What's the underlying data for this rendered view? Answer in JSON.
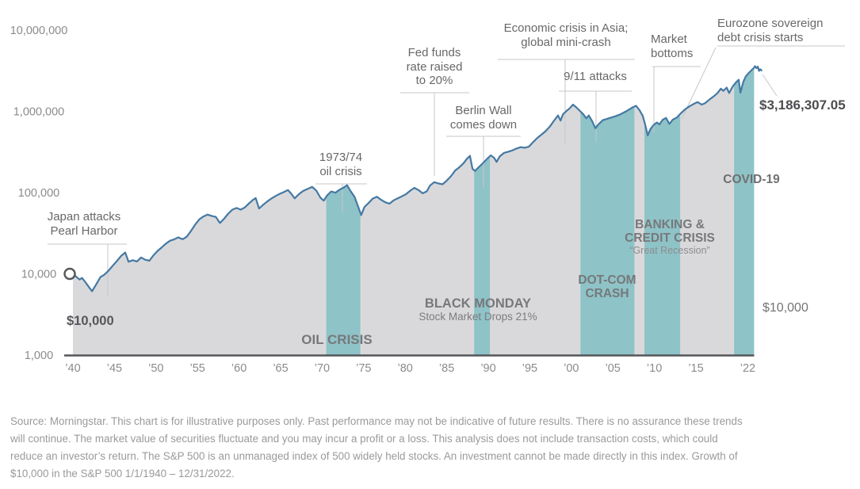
{
  "chart": {
    "y_axis_labels": [
      {
        "value": 10000000,
        "label": "10,000,000"
      },
      {
        "value": 1000000,
        "label": "1,000,000"
      },
      {
        "value": 100000,
        "label": "100,000"
      },
      {
        "value": 10000,
        "label": "10,000"
      },
      {
        "value": 1000,
        "label": "1,000"
      }
    ],
    "x_ticks": [
      {
        "year": 1940,
        "label": "’40"
      },
      {
        "year": 1945,
        "label": "’45"
      },
      {
        "year": 1950,
        "label": "’50"
      },
      {
        "year": 1955,
        "label": "’55"
      },
      {
        "year": 1960,
        "label": "’60"
      },
      {
        "year": 1965,
        "label": "’65"
      },
      {
        "year": 1970,
        "label": "’70"
      },
      {
        "year": 1975,
        "label": "’75"
      },
      {
        "year": 1980,
        "label": "’80"
      },
      {
        "year": 1985,
        "label": "’85"
      },
      {
        "year": 1990,
        "label": "’90"
      },
      {
        "year": 1995,
        "label": "’95"
      },
      {
        "year": 2000,
        "label": "’00"
      },
      {
        "year": 2005,
        "label": "’05"
      },
      {
        "year": 2010,
        "label": "’10"
      },
      {
        "year": 2015,
        "label": "’15"
      },
      {
        "year": 2022,
        "label": "’22"
      }
    ]
  },
  "chart_data": {
    "type": "area",
    "title": "Growth of $10,000 in the S&P 500 1/1/1940 – 12/31/2022",
    "y_scale": "log",
    "x_range": [
      1940,
      2023
    ],
    "ylim": [
      1000,
      10000000
    ],
    "grid": false,
    "start_value": 10000,
    "end_value": 3186307.05,
    "series": [
      {
        "name": "Growth of $10,000 in the S&P 500",
        "points": [
          [
            1940,
            10000
          ],
          [
            1940.4,
            9200
          ],
          [
            1940.8,
            8500
          ],
          [
            1941.1,
            8900
          ],
          [
            1941.5,
            7900
          ],
          [
            1942,
            6700
          ],
          [
            1942.3,
            6100
          ],
          [
            1942.8,
            7400
          ],
          [
            1943.3,
            9100
          ],
          [
            1943.8,
            9800
          ],
          [
            1944.3,
            11000
          ],
          [
            1944.8,
            12600
          ],
          [
            1945.3,
            14400
          ],
          [
            1945.8,
            16600
          ],
          [
            1946.3,
            18300
          ],
          [
            1946.7,
            14100
          ],
          [
            1947.2,
            14700
          ],
          [
            1947.7,
            14200
          ],
          [
            1948.2,
            15900
          ],
          [
            1948.7,
            14900
          ],
          [
            1949.2,
            14500
          ],
          [
            1949.7,
            16900
          ],
          [
            1950.2,
            19200
          ],
          [
            1950.7,
            21200
          ],
          [
            1951.2,
            23600
          ],
          [
            1951.7,
            25600
          ],
          [
            1952.2,
            26600
          ],
          [
            1952.7,
            28100
          ],
          [
            1953.2,
            26600
          ],
          [
            1953.7,
            28600
          ],
          [
            1954.2,
            33600
          ],
          [
            1954.7,
            40200
          ],
          [
            1955.2,
            46700
          ],
          [
            1955.7,
            50700
          ],
          [
            1956.2,
            53700
          ],
          [
            1956.7,
            51700
          ],
          [
            1957.2,
            50200
          ],
          [
            1957.7,
            42200
          ],
          [
            1958.2,
            47700
          ],
          [
            1958.7,
            55200
          ],
          [
            1959.2,
            61700
          ],
          [
            1959.7,
            64700
          ],
          [
            1960.2,
            61700
          ],
          [
            1960.7,
            65700
          ],
          [
            1961.2,
            73700
          ],
          [
            1961.7,
            81700
          ],
          [
            1962,
            85700
          ],
          [
            1962.4,
            63700
          ],
          [
            1962.9,
            70700
          ],
          [
            1963.4,
            77700
          ],
          [
            1963.9,
            84700
          ],
          [
            1964.4,
            90700
          ],
          [
            1964.9,
            96700
          ],
          [
            1965.4,
            101500
          ],
          [
            1965.9,
            107500
          ],
          [
            1966.3,
            96500
          ],
          [
            1966.7,
            85000
          ],
          [
            1967.2,
            95500
          ],
          [
            1967.7,
            104500
          ],
          [
            1968.2,
            110500
          ],
          [
            1968.8,
            117500
          ],
          [
            1969.3,
            105500
          ],
          [
            1969.8,
            86500
          ],
          [
            1970.2,
            79500
          ],
          [
            1970.6,
            92500
          ],
          [
            1971.1,
            103500
          ],
          [
            1971.6,
            99500
          ],
          [
            1972.1,
            108500
          ],
          [
            1972.6,
            115500
          ],
          [
            1973,
            123500
          ],
          [
            1973.4,
            105500
          ],
          [
            1973.9,
            88500
          ],
          [
            1974.3,
            68500
          ],
          [
            1974.7,
            52800
          ],
          [
            1975.1,
            66500
          ],
          [
            1975.6,
            74500
          ],
          [
            1976.1,
            84500
          ],
          [
            1976.6,
            89000
          ],
          [
            1977.1,
            81500
          ],
          [
            1977.6,
            76000
          ],
          [
            1978.1,
            73000
          ],
          [
            1978.6,
            80000
          ],
          [
            1979.1,
            85000
          ],
          [
            1979.6,
            90000
          ],
          [
            1980.1,
            95500
          ],
          [
            1980.6,
            105500
          ],
          [
            1981.1,
            114500
          ],
          [
            1981.6,
            107500
          ],
          [
            1982.1,
            98000
          ],
          [
            1982.6,
            103500
          ],
          [
            1983,
            122500
          ],
          [
            1983.5,
            134500
          ],
          [
            1984,
            129500
          ],
          [
            1984.5,
            126500
          ],
          [
            1985,
            140500
          ],
          [
            1985.5,
            158500
          ],
          [
            1986,
            186500
          ],
          [
            1986.5,
            204500
          ],
          [
            1987,
            228500
          ],
          [
            1987.4,
            258500
          ],
          [
            1987.8,
            283500
          ],
          [
            1988.1,
            196500
          ],
          [
            1988.4,
            184500
          ],
          [
            1988.9,
            207500
          ],
          [
            1989.4,
            232500
          ],
          [
            1989.9,
            262500
          ],
          [
            1990.3,
            287500
          ],
          [
            1990.7,
            268500
          ],
          [
            1991,
            238500
          ],
          [
            1991.4,
            280500
          ],
          [
            1991.9,
            308500
          ],
          [
            1992.4,
            318500
          ],
          [
            1992.9,
            330500
          ],
          [
            1993.4,
            348500
          ],
          [
            1993.9,
            362500
          ],
          [
            1994.4,
            356500
          ],
          [
            1994.9,
            368500
          ],
          [
            1995.4,
            418500
          ],
          [
            1995.9,
            470500
          ],
          [
            1996.4,
            516500
          ],
          [
            1996.9,
            570500
          ],
          [
            1997.4,
            648500
          ],
          [
            1997.9,
            764500
          ],
          [
            1998.4,
            890500
          ],
          [
            1998.7,
            768500
          ],
          [
            1999,
            920500
          ],
          [
            1999.4,
            1010000
          ],
          [
            1999.8,
            1090000
          ],
          [
            2000.2,
            1210000
          ],
          [
            2000.6,
            1120000
          ],
          [
            2001,
            1020000
          ],
          [
            2001.4,
            930000
          ],
          [
            2001.8,
            820000
          ],
          [
            2002.1,
            890000
          ],
          [
            2002.5,
            760000
          ],
          [
            2002.9,
            620000
          ],
          [
            2003.3,
            700000
          ],
          [
            2003.8,
            780000
          ],
          [
            2004.3,
            810000
          ],
          [
            2004.8,
            840000
          ],
          [
            2005.3,
            870000
          ],
          [
            2005.8,
            910000
          ],
          [
            2006.3,
            965000
          ],
          [
            2006.8,
            1030000
          ],
          [
            2007.3,
            1110000
          ],
          [
            2007.8,
            1170000
          ],
          [
            2008.2,
            1040000
          ],
          [
            2008.6,
            880000
          ],
          [
            2008.9,
            680000
          ],
          [
            2009.2,
            505000
          ],
          [
            2009.5,
            600000
          ],
          [
            2009.9,
            680000
          ],
          [
            2010.3,
            730000
          ],
          [
            2010.6,
            690000
          ],
          [
            2011,
            790000
          ],
          [
            2011.4,
            830000
          ],
          [
            2011.8,
            700000
          ],
          [
            2012.2,
            790000
          ],
          [
            2012.7,
            840000
          ],
          [
            2013.2,
            950000
          ],
          [
            2013.7,
            1060000
          ],
          [
            2014.2,
            1150000
          ],
          [
            2014.7,
            1230000
          ],
          [
            2015.2,
            1300000
          ],
          [
            2015.7,
            1210000
          ],
          [
            2016.1,
            1260000
          ],
          [
            2016.6,
            1390000
          ],
          [
            2017.1,
            1520000
          ],
          [
            2017.6,
            1680000
          ],
          [
            2018,
            1900000
          ],
          [
            2018.3,
            1790000
          ],
          [
            2018.7,
            1960000
          ],
          [
            2019,
            1680000
          ],
          [
            2019.4,
            2000000
          ],
          [
            2019.8,
            2260000
          ],
          [
            2020.15,
            2450000
          ],
          [
            2020.35,
            1700000
          ],
          [
            2020.7,
            2300000
          ],
          [
            2021,
            2700000
          ],
          [
            2021.4,
            3000000
          ],
          [
            2021.8,
            3300000
          ],
          [
            2022,
            3450000
          ],
          [
            2022.1,
            3600000
          ],
          [
            2022.3,
            3400000
          ],
          [
            2022.45,
            3550000
          ],
          [
            2022.6,
            3150000
          ],
          [
            2022.75,
            3300000
          ],
          [
            2022.9,
            3186307.05
          ]
        ]
      }
    ],
    "crisis_bands": [
      {
        "label": "OIL CRISIS",
        "start": 1970.5,
        "end": 1974.6
      },
      {
        "label": "BLACK MONDAY",
        "start": 1988.3,
        "end": 1990.2
      },
      {
        "label": "DOT-COM CRASH",
        "start": 2001.1,
        "end": 2007.6
      },
      {
        "label": "BANKING & CREDIT CRISIS",
        "start": 2008.8,
        "end": 2013.1
      },
      {
        "label": "COVID-19",
        "start": 2019.6,
        "end": 2022.0
      }
    ]
  },
  "colors": {
    "line": "#4579a3",
    "area_fill": "#d9d9db",
    "crisis_band": "#8ec3c7",
    "axis_line": "#55565a",
    "axis_label": "#8b8b8d",
    "leader_line": "#c7c7c9"
  },
  "annotations": {
    "japan": {
      "text": "Japan attacks\nPearl Harbor"
    },
    "start_value": {
      "text": "$10,000"
    },
    "oil_7374": {
      "text": "1973/74\noil crisis"
    },
    "fed_funds": {
      "text": "Fed funds\nrate raised\nto 20%"
    },
    "berlin_wall": {
      "text": "Berlin Wall\ncomes down"
    },
    "asia_crisis": {
      "text": "Economic crisis in Asia;\nglobal mini-crash"
    },
    "nine_eleven": {
      "text": "9/11 attacks"
    },
    "market_bottoms": {
      "text": "Market\nbottoms"
    },
    "eurozone": {
      "text": "Eurozone sovereign\ndebt crisis starts"
    },
    "end_value": {
      "text": "$3,186,307.05"
    },
    "oil_crisis_band": {
      "text": "OIL CRISIS"
    },
    "black_monday": {
      "title": "BLACK MONDAY",
      "sub": "Stock Market Drops 21%"
    },
    "dotcom": {
      "text": "DOT-COM\nCRASH"
    },
    "banking": {
      "title": "BANKING &\nCREDIT CRISIS",
      "sub": "“Great Recession”"
    },
    "covid": {
      "text": "COVID-19"
    },
    "right_value": {
      "text": "$10,000"
    }
  },
  "source": {
    "lines": [
      "Source: Morningstar. This chart is for illustrative purposes only. Past performance may not be indicative of future results. There is no assurance these trends",
      "will continue. The market value of securities fluctuate and you may incur a profit or a loss. This analysis does not include transaction costs, which could",
      "reduce an investor’s return. The S&P 500 is an unmanaged index of 500 widely held stocks. An investment cannot be made directly in this index. Growth of",
      "$10,000 in the S&P 500 1/1/1940 – 12/31/2022."
    ]
  }
}
